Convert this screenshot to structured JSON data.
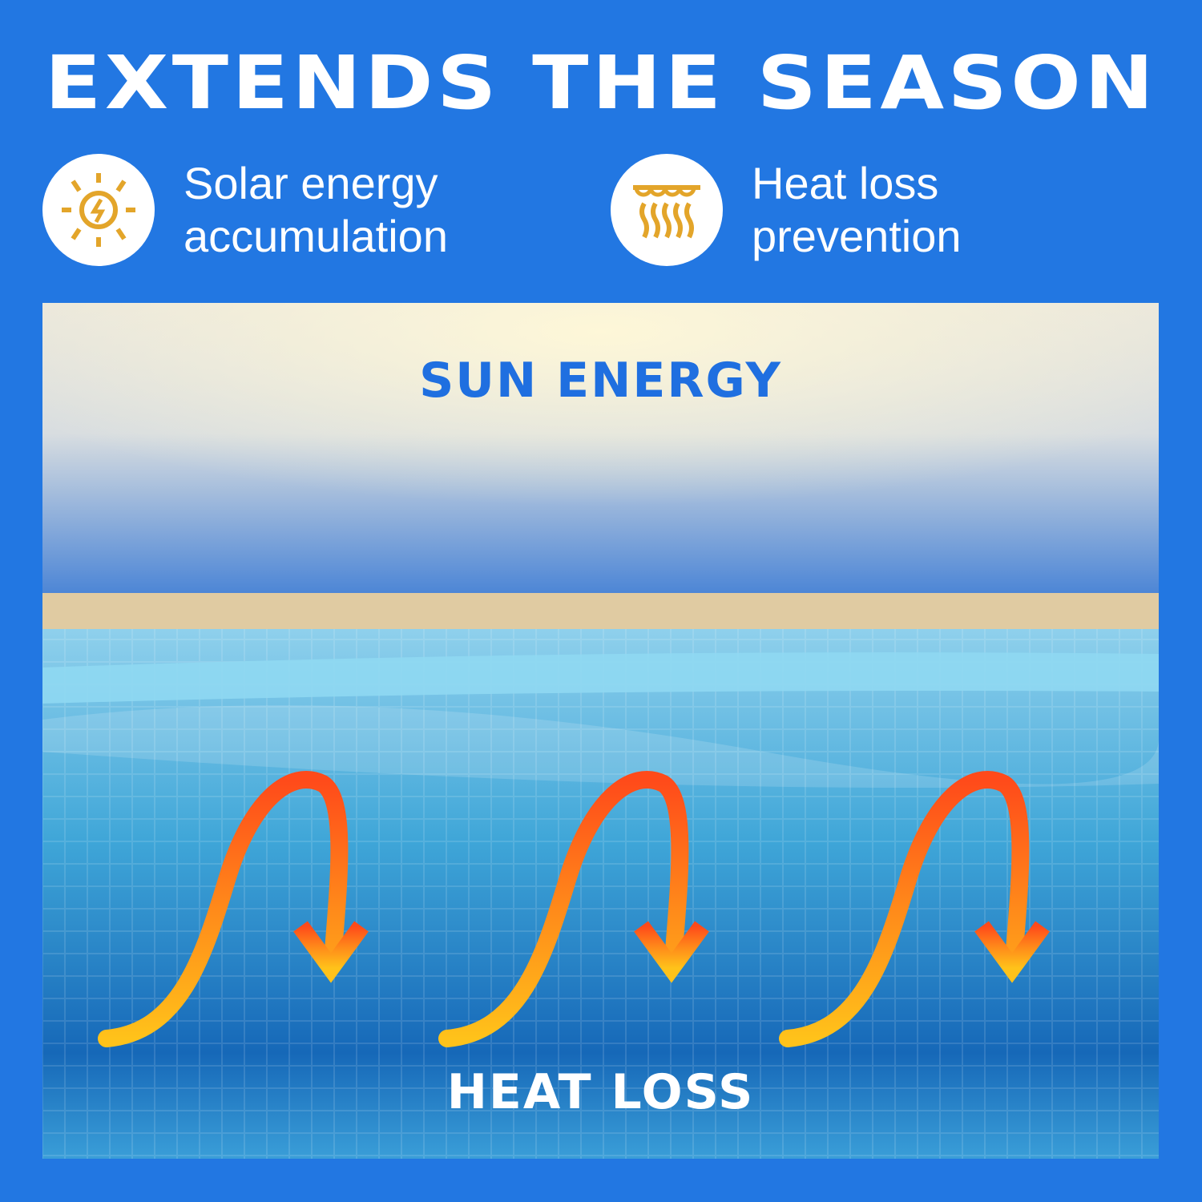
{
  "title": "EXTENDS THE SEASON",
  "features": [
    {
      "icon": "sun-bolt-icon",
      "line1": "Solar energy",
      "line2": "accumulation"
    },
    {
      "icon": "cover-heat-waves-icon",
      "line1": "Heat loss",
      "line2": "prevention"
    }
  ],
  "scene": {
    "top_label": "SUN ENERGY",
    "bottom_label": "HEAT LOSS"
  },
  "colors": {
    "background": "#2277e2",
    "icon": "#e3a52a",
    "label_blue": "#1f6fe0",
    "arrow_top": "#ff4a1a",
    "arrow_bottom": "#ffc21a"
  }
}
